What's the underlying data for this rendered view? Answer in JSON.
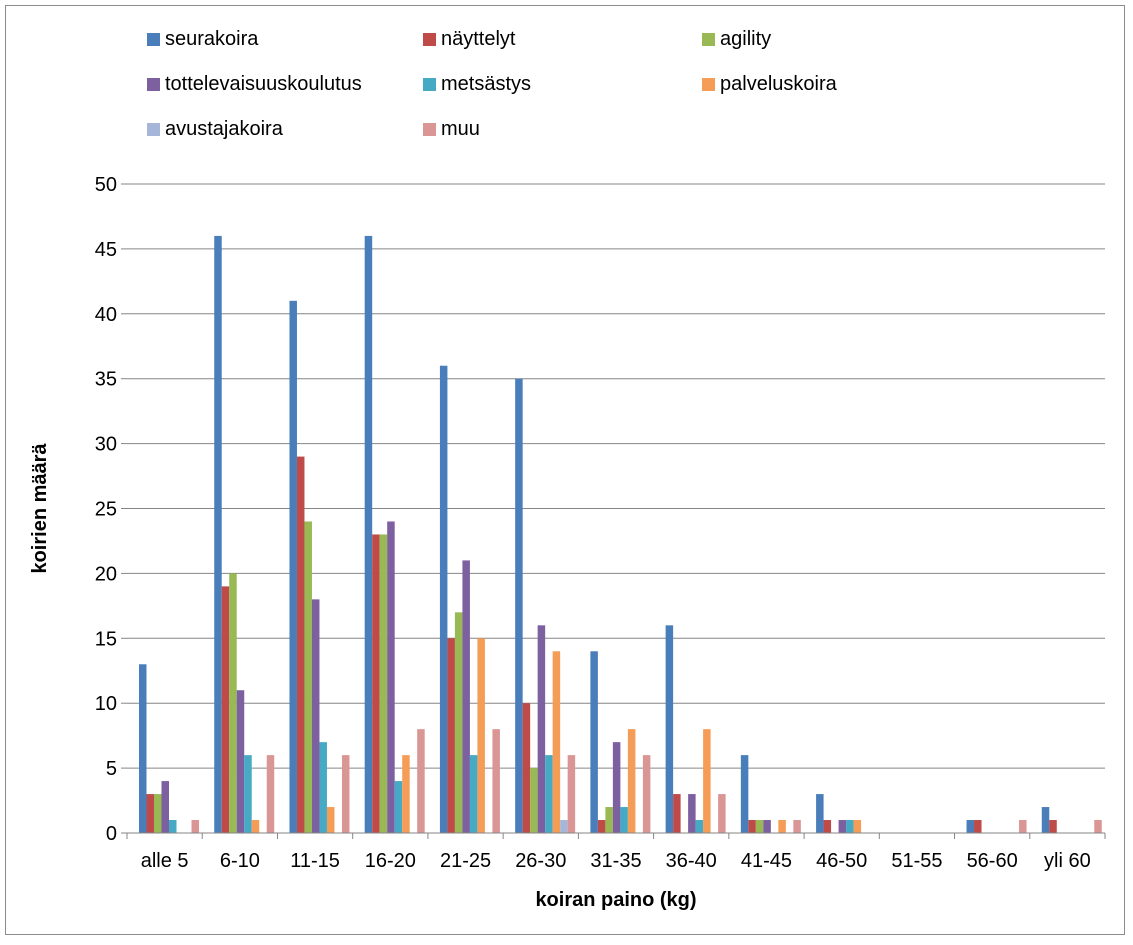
{
  "chart_data": {
    "type": "bar",
    "title": "",
    "xlabel": "koiran paino (kg)",
    "ylabel": "koirien määrä",
    "ylim": [
      0,
      50
    ],
    "yticks": [
      0,
      5,
      10,
      15,
      20,
      25,
      30,
      35,
      40,
      45,
      50
    ],
    "grid": true,
    "legend_position": "top",
    "categories": [
      "alle 5",
      "6-10",
      "11-15",
      "16-20",
      "21-25",
      "26-30",
      "31-35",
      "36-40",
      "41-45",
      "46-50",
      "51-55",
      "56-60",
      "yli 60"
    ],
    "series": [
      {
        "name": "seurakoira",
        "color": "#4a7ebb",
        "values": [
          13,
          46,
          41,
          46,
          36,
          35,
          14,
          16,
          6,
          3,
          0,
          1,
          2
        ]
      },
      {
        "name": "näyttelyt",
        "color": "#be4b48",
        "values": [
          3,
          19,
          29,
          23,
          15,
          10,
          1,
          3,
          1,
          1,
          0,
          1,
          1
        ]
      },
      {
        "name": "agility",
        "color": "#98b954",
        "values": [
          3,
          20,
          24,
          23,
          17,
          5,
          2,
          0,
          1,
          0,
          0,
          0,
          0
        ]
      },
      {
        "name": "tottelevaisuuskoulutus",
        "color": "#7d60a0",
        "values": [
          4,
          11,
          18,
          24,
          21,
          16,
          7,
          3,
          1,
          1,
          0,
          0,
          0
        ]
      },
      {
        "name": "metsästys",
        "color": "#46aac5",
        "values": [
          1,
          6,
          7,
          4,
          6,
          6,
          2,
          1,
          0,
          1,
          0,
          0,
          0
        ]
      },
      {
        "name": "palveluskoira",
        "color": "#f59d56",
        "values": [
          0,
          1,
          2,
          6,
          15,
          14,
          8,
          8,
          1,
          1,
          0,
          0,
          0
        ]
      },
      {
        "name": "avustajakoira",
        "color": "#a5b6d8",
        "values": [
          0,
          0,
          0,
          0,
          0,
          1,
          0,
          0,
          0,
          0,
          0,
          0,
          0
        ]
      },
      {
        "name": "muu",
        "color": "#da9694",
        "values": [
          1,
          6,
          6,
          8,
          8,
          6,
          6,
          3,
          1,
          0,
          0,
          1,
          1
        ]
      }
    ]
  }
}
